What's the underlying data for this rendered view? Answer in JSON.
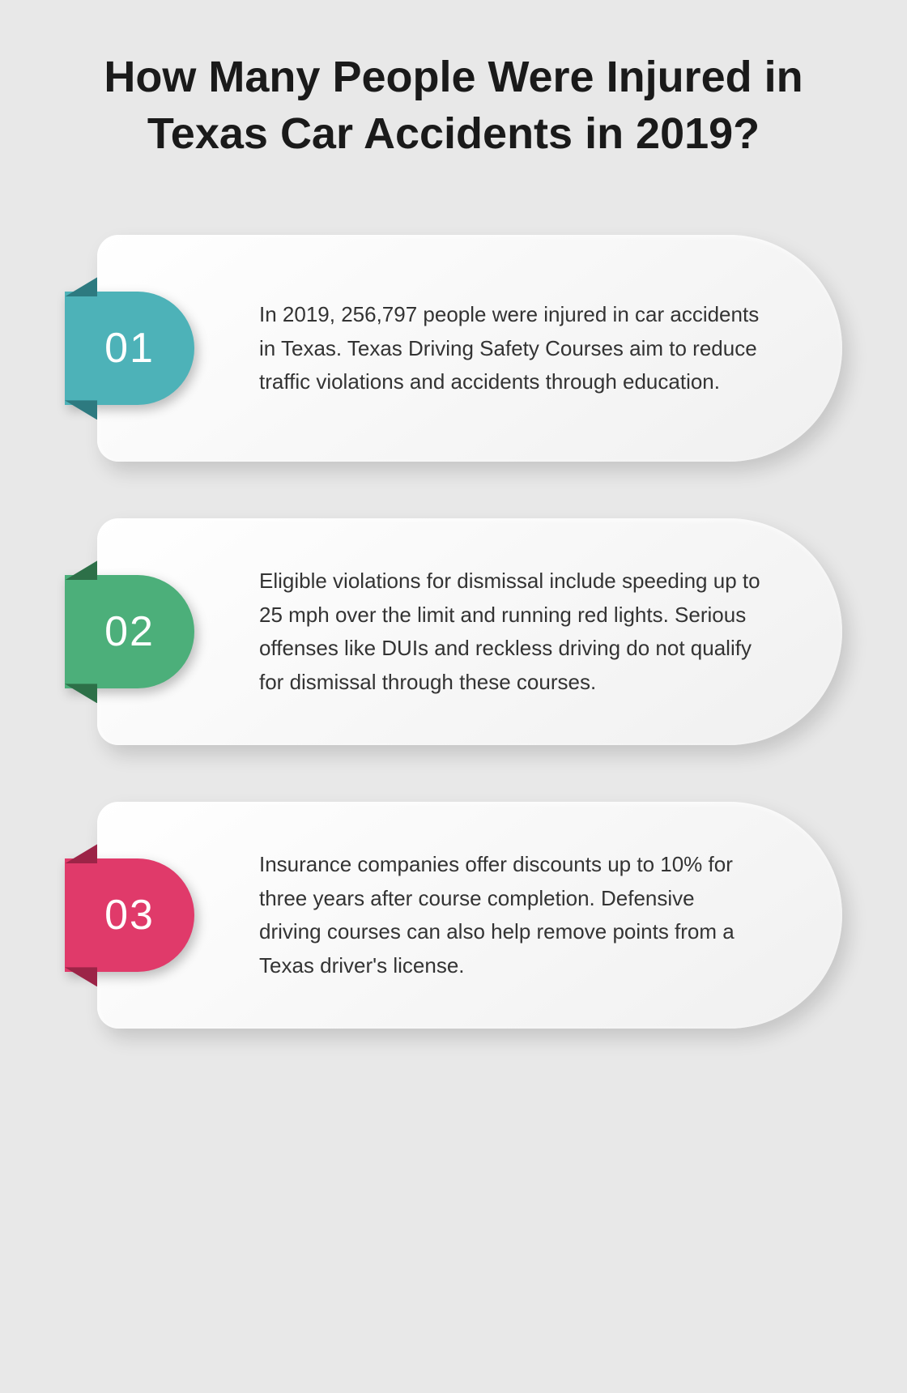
{
  "title": "How Many People Were Injured in Texas Car Accidents in 2019?",
  "background_color": "#e8e8e8",
  "title_color": "#1a1a1a",
  "title_fontsize": 54,
  "card_bg_start": "#ffffff",
  "card_bg_end": "#f0f0f0",
  "text_color": "#333333",
  "text_fontsize": 26,
  "num_color": "#ffffff",
  "num_fontsize": 52,
  "cards": [
    {
      "num": "01",
      "color": "#4db2b8",
      "fold_color": "#2d7a80",
      "text": "In 2019, 256,797 people were injured in car accidents in Texas. Texas Driving Safety Courses aim to reduce traffic violations and accidents through education."
    },
    {
      "num": "02",
      "color": "#4caf7a",
      "fold_color": "#2d7048",
      "text": "Eligible violations for dismissal include speeding up to 25 mph over the limit and running red lights. Serious offenses like DUIs and reckless driving do not qualify for dismissal through these courses."
    },
    {
      "num": "03",
      "color": "#e03a6a",
      "fold_color": "#9c2447",
      "text": "Insurance companies offer discounts up to 10% for three years after course completion. Defensive driving courses can also help remove points from a Texas driver's license."
    }
  ]
}
